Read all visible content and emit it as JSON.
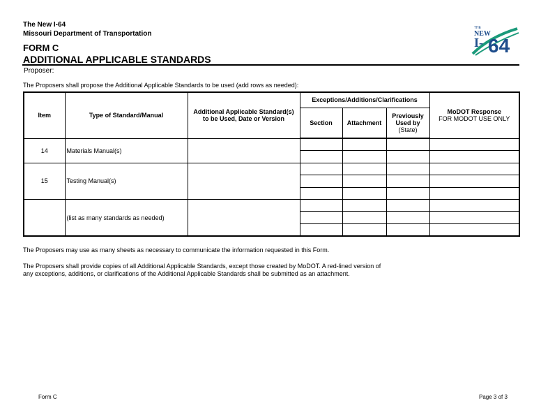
{
  "header": {
    "line1": "The New I-64",
    "line2": "Missouri Department of Transportation",
    "form": "FORM C",
    "title": "ADDITIONAL APPLICABLE STANDARDS",
    "proposer_label": "Proposer:",
    "logo_text": "THE NEW I-64",
    "logo_colors": {
      "blue": "#1f4e8c",
      "green": "#1a9a7a"
    }
  },
  "intro": "The Proposers shall propose the Additional Applicable Standards to be used (add rows as needed):",
  "table": {
    "headers": {
      "item": "Item",
      "type": "Type of Standard/Manual",
      "additional": "Additional Applicable Standard(s) to be Used, Date or Version",
      "group": "Exceptions/Additions/Clarifications",
      "section": "Section",
      "attachment": "Attachment",
      "previously": "Previously Used by",
      "previously_sub": "(State)",
      "modot": "MoDOT Response",
      "modot_sub": "FOR MODOT USE ONLY"
    },
    "rows": [
      {
        "item": "14",
        "type": "Materials Manual(s)"
      },
      {
        "item": "15",
        "type": "Testing Manual(s)"
      },
      {
        "item": "",
        "type": "(list as many standards as needed)"
      }
    ]
  },
  "notes": [
    "The Proposers may use as many sheets as necessary to communicate the information requested in this Form.",
    "The Proposers shall provide copies of all Additional Applicable Standards, except those created by MoDOT.  A red-lined version of",
    "any exceptions, additions, or clarifications of the Additional Applicable Standards shall be submitted as an attachment."
  ],
  "footer": {
    "left": "Form C",
    "right": "Page 3 of 3"
  }
}
